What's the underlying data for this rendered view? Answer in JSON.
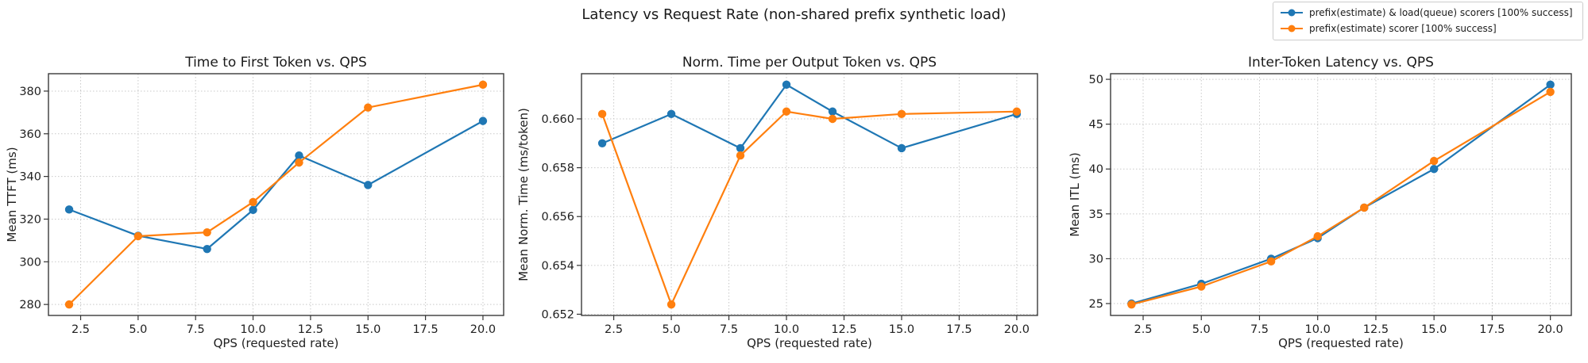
{
  "page": {
    "suptitle": "Latency vs Request Rate (non-shared prefix synthetic load)",
    "background": "#ffffff"
  },
  "legend": {
    "items": [
      {
        "label": "prefix(estimate) & load(queue) scorers [100% success]",
        "color": "#1f77b4"
      },
      {
        "label": "prefix(estimate) scorer [100% success]",
        "color": "#ff7f0e"
      }
    ]
  },
  "chart_data": [
    {
      "type": "line",
      "title": "Time to First Token vs. QPS",
      "xlabel": "QPS (requested rate)",
      "ylabel": "Mean TTFT (ms)",
      "x": [
        2,
        5,
        8,
        10,
        12,
        15,
        20
      ],
      "xlim": [
        1.1,
        20.9
      ],
      "ylim": [
        274.85,
        388.15
      ],
      "xticks": [
        2.5,
        5.0,
        7.5,
        10.0,
        12.5,
        15.0,
        17.5,
        20.0
      ],
      "xtick_labels": [
        "2.5",
        "5.0",
        "7.5",
        "10.0",
        "12.5",
        "15.0",
        "17.5",
        "20.0"
      ],
      "yticks": [
        280,
        300,
        320,
        340,
        360,
        380
      ],
      "ytick_labels": [
        "280",
        "300",
        "320",
        "340",
        "360",
        "380"
      ],
      "grid": true,
      "legend_position": "figure-top-right",
      "series": [
        {
          "name": "prefix(estimate) & load(queue) scorers [100% success]",
          "color": "#1f77b4",
          "values": [
            324.5,
            312.2,
            306.0,
            324.3,
            349.8,
            336.0,
            366.0
          ]
        },
        {
          "name": "prefix(estimate) scorer [100% success]",
          "color": "#ff7f0e",
          "values": [
            280.0,
            312.0,
            313.8,
            328.0,
            346.5,
            372.3,
            383.0
          ]
        }
      ]
    },
    {
      "type": "line",
      "title": "Norm. Time per Output Token vs. QPS",
      "xlabel": "QPS (requested rate)",
      "ylabel": "Mean Norm. Time (ms/token)",
      "x": [
        2,
        5,
        8,
        10,
        12,
        15,
        20
      ],
      "xlim": [
        1.1,
        20.9
      ],
      "ylim": [
        0.65195,
        0.66185
      ],
      "xticks": [
        2.5,
        5.0,
        7.5,
        10.0,
        12.5,
        15.0,
        17.5,
        20.0
      ],
      "xtick_labels": [
        "2.5",
        "5.0",
        "7.5",
        "10.0",
        "12.5",
        "15.0",
        "17.5",
        "20.0"
      ],
      "yticks": [
        0.652,
        0.654,
        0.656,
        0.658,
        0.66
      ],
      "ytick_labels": [
        "0.652",
        "0.654",
        "0.656",
        "0.658",
        "0.660"
      ],
      "grid": true,
      "series": [
        {
          "name": "prefix(estimate) & load(queue) scorers [100% success]",
          "color": "#1f77b4",
          "values": [
            0.659,
            0.6602,
            0.6588,
            0.6614,
            0.6603,
            0.6588,
            0.6602
          ]
        },
        {
          "name": "prefix(estimate) scorer [100% success]",
          "color": "#ff7f0e",
          "values": [
            0.6602,
            0.6524,
            0.6585,
            0.6603,
            0.66,
            0.6602,
            0.6603
          ]
        }
      ]
    },
    {
      "type": "line",
      "title": "Inter-Token Latency vs. QPS",
      "xlabel": "QPS (requested rate)",
      "ylabel": "Mean ITL (ms)",
      "x": [
        2,
        5,
        8,
        10,
        12,
        15,
        20
      ],
      "xlim": [
        1.1,
        20.9
      ],
      "ylim": [
        23.675,
        50.625
      ],
      "xticks": [
        2.5,
        5.0,
        7.5,
        10.0,
        12.5,
        15.0,
        17.5,
        20.0
      ],
      "xtick_labels": [
        "2.5",
        "5.0",
        "7.5",
        "10.0",
        "12.5",
        "15.0",
        "17.5",
        "20.0"
      ],
      "yticks": [
        25,
        30,
        35,
        40,
        45,
        50
      ],
      "ytick_labels": [
        "25",
        "30",
        "35",
        "40",
        "45",
        "50"
      ],
      "grid": true,
      "series": [
        {
          "name": "prefix(estimate) & load(queue) scorers [100% success]",
          "color": "#1f77b4",
          "values": [
            25.0,
            27.2,
            30.0,
            32.3,
            35.7,
            40.0,
            49.4
          ]
        },
        {
          "name": "prefix(estimate) scorer [100% success]",
          "color": "#ff7f0e",
          "values": [
            24.9,
            26.9,
            29.7,
            32.5,
            35.7,
            40.9,
            48.6
          ]
        }
      ]
    }
  ]
}
